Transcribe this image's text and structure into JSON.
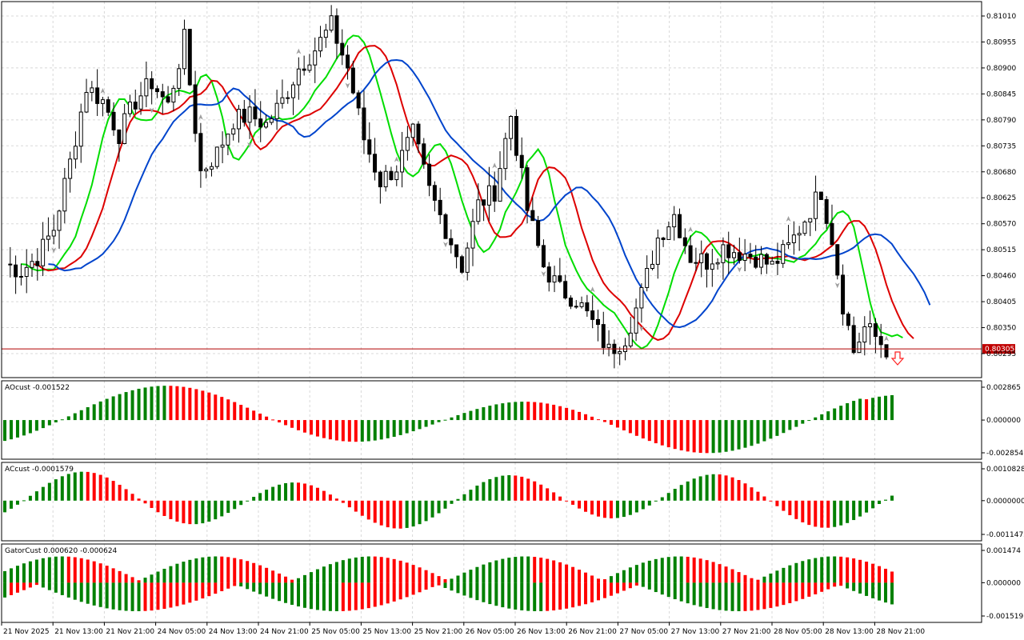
{
  "chart_data": [
    {
      "type": "candlestick",
      "panel": "price",
      "ylim": [
        0.8024,
        0.8104
      ],
      "y_ticks": [
        "0.81010",
        "0.80955",
        "0.80900",
        "0.80845",
        "0.80790",
        "0.80735",
        "0.80680",
        "0.80625",
        "0.80570",
        "0.80515",
        "0.80460",
        "0.80405",
        "0.80350",
        "0.80295"
      ],
      "current_price_label": "0.80305",
      "current_price": 0.80305,
      "grid": true,
      "series": [
        {
          "name": "",
          "color": "#00dd00",
          "role": "fast-ma"
        },
        {
          "name": "",
          "color": "#dd0000",
          "role": "medium-ma"
        },
        {
          "name": "",
          "color": "#0044cc",
          "role": "slow-ma"
        }
      ],
      "signal": "sell-arrow"
    },
    {
      "type": "bar",
      "panel": "AO",
      "label": "AOcust -0.001522",
      "y_ticks": [
        "0.002865",
        "0.000000",
        "-0.002854"
      ],
      "ylim": [
        -0.002854,
        0.002865
      ],
      "colors": {
        "up": "#008000",
        "down": "#ff0000"
      }
    },
    {
      "type": "bar",
      "panel": "AC",
      "label": "ACcust -0.0001579",
      "y_ticks": [
        "0.0010828",
        "0.0000000",
        "-0.0011472"
      ],
      "ylim": [
        -0.0011472,
        0.0010828
      ],
      "colors": {
        "up": "#008000",
        "down": "#ff0000"
      }
    },
    {
      "type": "bar",
      "panel": "Gator",
      "label": "GatorCust 0.000620 -0.000624",
      "y_ticks": [
        "0.001474",
        "0.000000",
        "-0.001519"
      ],
      "ylim": [
        -0.001519,
        0.001474
      ],
      "colors": {
        "up": "#008000",
        "down": "#ff0000"
      }
    }
  ],
  "x_axis": {
    "labels": [
      "21 Nov 2025",
      "21 Nov 13:00",
      "21 Nov 21:00",
      "24 Nov 05:00",
      "24 Nov 13:00",
      "24 Nov 21:00",
      "25 Nov 05:00",
      "25 Nov 13:00",
      "25 Nov 21:00",
      "26 Nov 05:00",
      "26 Nov 13:00",
      "26 Nov 21:00",
      "27 Nov 05:00",
      "27 Nov 13:00",
      "27 Nov 21:00",
      "28 Nov 05:00",
      "28 Nov 13:00",
      "28 Nov 21:00"
    ]
  }
}
